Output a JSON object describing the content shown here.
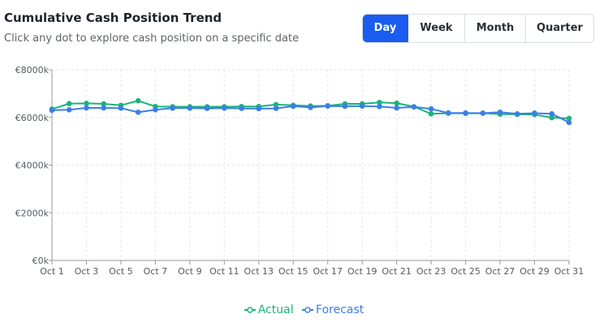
{
  "header": {
    "title": "Cumulative Cash Position Trend",
    "subtitle": "Click any dot to explore cash position on a specific date"
  },
  "toggle": {
    "options": [
      {
        "label": "Day",
        "active": true
      },
      {
        "label": "Week",
        "active": false
      },
      {
        "label": "Month",
        "active": false
      },
      {
        "label": "Quarter",
        "active": false
      }
    ]
  },
  "colors": {
    "actual": "#1db37a",
    "forecast": "#3b7fe8",
    "grid": "#e3e5e8",
    "axis": "#999999",
    "active_button": "#1a5cf0"
  },
  "chart_data": {
    "type": "line",
    "title": "Cumulative Cash Position Trend",
    "xlabel": "",
    "ylabel": "",
    "categories": [
      "Oct 1",
      "Oct 2",
      "Oct 3",
      "Oct 4",
      "Oct 5",
      "Oct 6",
      "Oct 7",
      "Oct 8",
      "Oct 9",
      "Oct 10",
      "Oct 11",
      "Oct 12",
      "Oct 13",
      "Oct 14",
      "Oct 15",
      "Oct 16",
      "Oct 17",
      "Oct 18",
      "Oct 19",
      "Oct 20",
      "Oct 21",
      "Oct 22",
      "Oct 23",
      "Oct 24",
      "Oct 25",
      "Oct 26",
      "Oct 27",
      "Oct 28",
      "Oct 29",
      "Oct 30",
      "Oct 31"
    ],
    "x_tick_labels": [
      "Oct 1",
      "Oct 3",
      "Oct 5",
      "Oct 7",
      "Oct 9",
      "Oct 11",
      "Oct 13",
      "Oct 15",
      "Oct 17",
      "Oct 19",
      "Oct 21",
      "Oct 23",
      "Oct 25",
      "Oct 27",
      "Oct 29",
      "Oct 31"
    ],
    "y_ticks": [
      0,
      2000,
      4000,
      6000,
      8000
    ],
    "y_tick_labels": [
      "€0k",
      "€2000k",
      "€4000k",
      "€6000k",
      "€8000k"
    ],
    "ylim": [
      0,
      8000
    ],
    "grid": true,
    "legend_position": "bottom-center",
    "series": [
      {
        "name": "Actual",
        "values": [
          6350,
          6580,
          6590,
          6570,
          6510,
          6700,
          6460,
          6450,
          6450,
          6450,
          6450,
          6460,
          6460,
          6540,
          6510,
          6480,
          6490,
          6570,
          6570,
          6630,
          6600,
          6450,
          6150,
          6180,
          6170,
          6180,
          6140,
          6130,
          6120,
          5990,
          5960
        ]
      },
      {
        "name": "Forecast",
        "values": [
          6300,
          6320,
          6400,
          6400,
          6390,
          6220,
          6320,
          6390,
          6390,
          6380,
          6390,
          6380,
          6370,
          6380,
          6470,
          6420,
          6480,
          6470,
          6480,
          6460,
          6400,
          6440,
          6360,
          6190,
          6190,
          6180,
          6220,
          6150,
          6180,
          6150,
          5790
        ]
      }
    ]
  }
}
